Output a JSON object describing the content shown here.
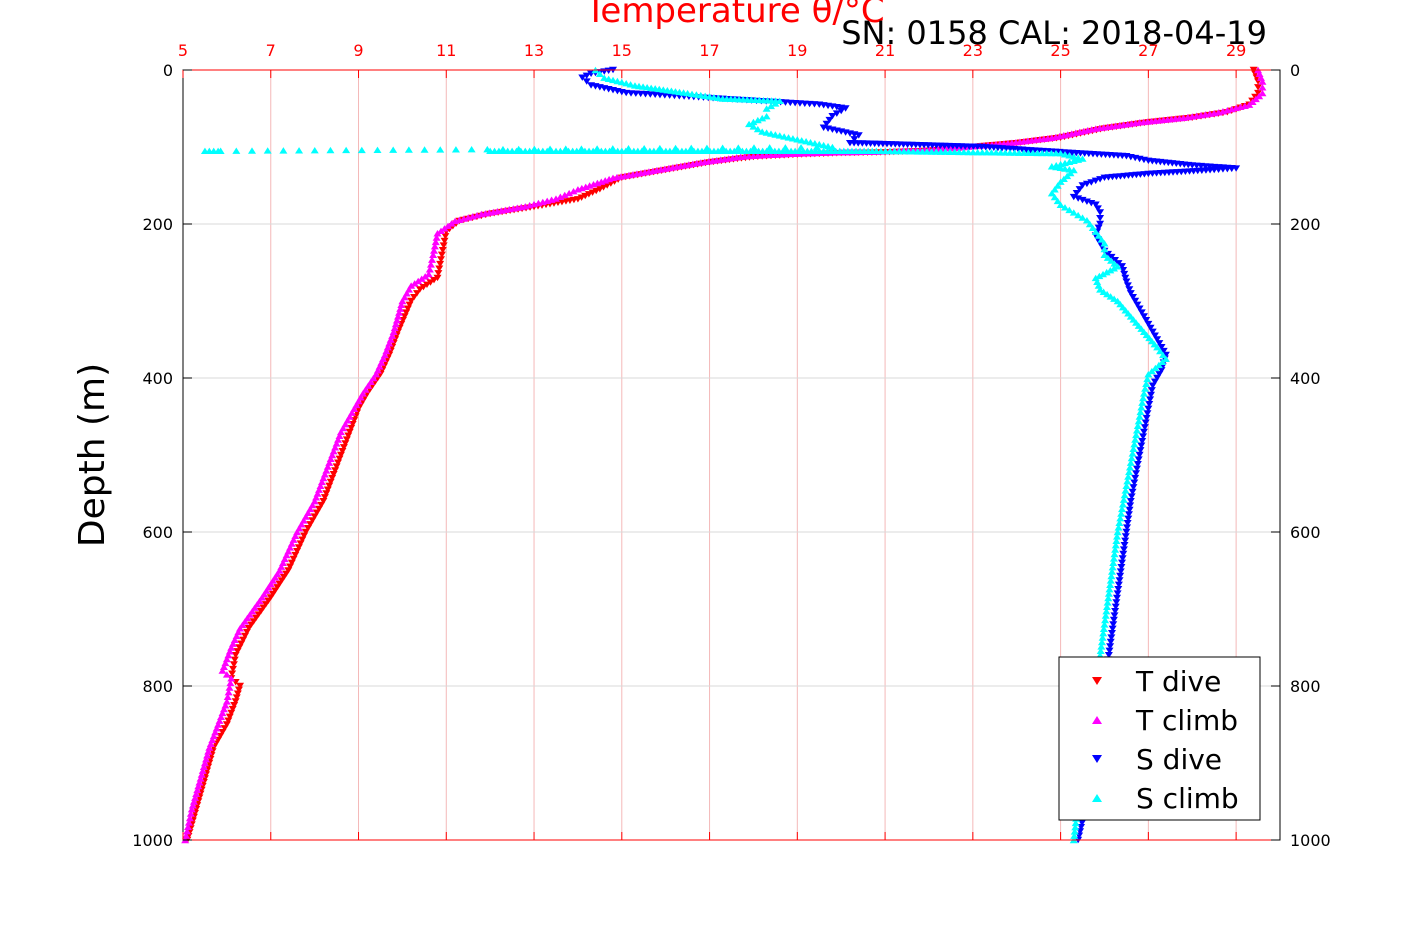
{
  "chart_data": {
    "type": "scatter",
    "title": "Temperature θ/°C",
    "annotation": "SN: 0158  CAL: 2018-04-19",
    "ylabel": "Depth (m)",
    "y_axis": {
      "range": [
        0,
        1000
      ],
      "reversed": true,
      "ticks": [
        0,
        200,
        400,
        600,
        800,
        1000
      ]
    },
    "x_top_axis": {
      "label": "Temperature θ/°C",
      "range": [
        5,
        30
      ],
      "ticks": [
        5,
        7,
        9,
        11,
        13,
        15,
        17,
        19,
        21,
        23,
        25,
        27,
        29
      ]
    },
    "grid": true,
    "legend_position": "bottom-right",
    "colors": {
      "temperature_axis": "#ff0000",
      "grid_temp": "#f4b8b8",
      "grid_gray": "#d9d9d9"
    },
    "series": [
      {
        "name": "T dive",
        "color": "#ff0000",
        "marker": "triangle-down",
        "points": [
          [
            29.4,
            0
          ],
          [
            29.5,
            15
          ],
          [
            29.5,
            30
          ],
          [
            29.3,
            45
          ],
          [
            28.8,
            55
          ],
          [
            28.0,
            62
          ],
          [
            27.0,
            68
          ],
          [
            26.0,
            76
          ],
          [
            25.0,
            88
          ],
          [
            24.0,
            95
          ],
          [
            23.0,
            100
          ],
          [
            22.0,
            105
          ],
          [
            21.0,
            107
          ],
          [
            20.0,
            108
          ],
          [
            19.0,
            110
          ],
          [
            18.0,
            113
          ],
          [
            17.0,
            120
          ],
          [
            16.0,
            130
          ],
          [
            15.0,
            140
          ],
          [
            14.5,
            155
          ],
          [
            14.0,
            168
          ],
          [
            13.0,
            178
          ],
          [
            12.0,
            187
          ],
          [
            11.3,
            196
          ],
          [
            11.0,
            210
          ],
          [
            10.9,
            240
          ],
          [
            10.8,
            270
          ],
          [
            10.4,
            285
          ],
          [
            10.2,
            300
          ],
          [
            9.9,
            340
          ],
          [
            9.7,
            370
          ],
          [
            9.5,
            395
          ],
          [
            9.2,
            420
          ],
          [
            9.0,
            440
          ],
          [
            8.8,
            470
          ],
          [
            8.6,
            500
          ],
          [
            8.4,
            530
          ],
          [
            8.2,
            560
          ],
          [
            7.8,
            600
          ],
          [
            7.4,
            650
          ],
          [
            7.0,
            685
          ],
          [
            6.5,
            725
          ],
          [
            6.2,
            760
          ],
          [
            6.1,
            790
          ],
          [
            6.3,
            800
          ],
          [
            6.2,
            820
          ],
          [
            6.0,
            850
          ],
          [
            5.7,
            880
          ],
          [
            5.5,
            920
          ],
          [
            5.3,
            960
          ],
          [
            5.1,
            1000
          ]
        ]
      },
      {
        "name": "T climb",
        "color": "#ff00ff",
        "marker": "triangle-up",
        "points": [
          [
            29.5,
            0
          ],
          [
            29.6,
            15
          ],
          [
            29.6,
            30
          ],
          [
            29.3,
            45
          ],
          [
            28.6,
            55
          ],
          [
            27.8,
            62
          ],
          [
            26.8,
            68
          ],
          [
            25.8,
            76
          ],
          [
            24.8,
            88
          ],
          [
            23.8,
            95
          ],
          [
            22.8,
            100
          ],
          [
            21.8,
            104
          ],
          [
            20.8,
            106
          ],
          [
            19.8,
            107
          ],
          [
            18.8,
            109
          ],
          [
            17.8,
            112
          ],
          [
            16.8,
            120
          ],
          [
            15.8,
            130
          ],
          [
            14.8,
            140
          ],
          [
            14.0,
            155
          ],
          [
            13.5,
            167
          ],
          [
            12.8,
            177
          ],
          [
            11.8,
            187
          ],
          [
            11.2,
            196
          ],
          [
            10.8,
            212
          ],
          [
            10.7,
            240
          ],
          [
            10.6,
            265
          ],
          [
            10.2,
            280
          ],
          [
            10.0,
            300
          ],
          [
            9.8,
            340
          ],
          [
            9.6,
            370
          ],
          [
            9.4,
            395
          ],
          [
            9.1,
            420
          ],
          [
            8.9,
            440
          ],
          [
            8.6,
            470
          ],
          [
            8.4,
            500
          ],
          [
            8.2,
            530
          ],
          [
            8.0,
            560
          ],
          [
            7.6,
            600
          ],
          [
            7.2,
            650
          ],
          [
            6.8,
            685
          ],
          [
            6.3,
            725
          ],
          [
            6.1,
            750
          ],
          [
            5.9,
            780
          ],
          [
            6.1,
            790
          ],
          [
            6.0,
            820
          ],
          [
            5.8,
            850
          ],
          [
            5.6,
            880
          ],
          [
            5.4,
            920
          ],
          [
            5.2,
            960
          ],
          [
            5.05,
            1000
          ]
        ]
      },
      {
        "name": "S dive",
        "color": "#0000ff",
        "marker": "triangle-down",
        "points": [
          [
            14.8,
            0
          ],
          [
            14.3,
            5
          ],
          [
            14.1,
            10
          ],
          [
            14.3,
            20
          ],
          [
            15.1,
            30
          ],
          [
            19.5,
            45
          ],
          [
            20.1,
            50
          ],
          [
            19.8,
            60
          ],
          [
            19.6,
            75
          ],
          [
            20.4,
            85
          ],
          [
            20.2,
            95
          ],
          [
            23.2,
            100
          ],
          [
            24.5,
            105
          ],
          [
            26.5,
            112
          ],
          [
            27.0,
            118
          ],
          [
            28.0,
            124
          ],
          [
            29.0,
            128
          ],
          [
            28.5,
            130
          ],
          [
            27.0,
            135
          ],
          [
            26.0,
            140
          ],
          [
            25.5,
            150
          ],
          [
            25.3,
            165
          ],
          [
            25.8,
            175
          ],
          [
            25.9,
            185
          ],
          [
            25.9,
            200
          ],
          [
            25.8,
            215
          ],
          [
            26.0,
            235
          ],
          [
            26.4,
            255
          ],
          [
            26.5,
            275
          ],
          [
            26.6,
            290
          ],
          [
            26.8,
            310
          ],
          [
            27.0,
            330
          ],
          [
            27.2,
            350
          ],
          [
            27.4,
            370
          ],
          [
            27.3,
            390
          ],
          [
            27.1,
            410
          ],
          [
            27.0,
            440
          ],
          [
            26.9,
            470
          ],
          [
            26.8,
            500
          ],
          [
            26.7,
            530
          ],
          [
            26.6,
            560
          ],
          [
            26.5,
            600
          ],
          [
            26.4,
            640
          ],
          [
            26.3,
            680
          ],
          [
            26.2,
            720
          ],
          [
            26.1,
            760
          ],
          [
            26.0,
            800
          ],
          [
            25.9,
            850
          ],
          [
            25.8,
            900
          ],
          [
            25.6,
            950
          ],
          [
            25.4,
            1000
          ]
        ]
      },
      {
        "name": "S climb",
        "color": "#00ffff",
        "marker": "triangle-up",
        "points": [
          [
            14.4,
            0
          ],
          [
            14.6,
            10
          ],
          [
            15.3,
            20
          ],
          [
            16.5,
            30
          ],
          [
            17.3,
            37
          ],
          [
            18.6,
            40
          ],
          [
            18.3,
            50
          ],
          [
            18.3,
            60
          ],
          [
            17.9,
            70
          ],
          [
            18.2,
            80
          ],
          [
            19.0,
            90
          ],
          [
            19.8,
            100
          ],
          [
            5.5,
            105
          ],
          [
            5.8,
            105
          ],
          [
            12.0,
            105
          ],
          [
            12.7,
            105
          ],
          [
            13.6,
            105
          ],
          [
            15.0,
            105
          ],
          [
            17.1,
            105
          ],
          [
            20.8,
            105
          ],
          [
            25.0,
            108
          ],
          [
            25.5,
            115
          ],
          [
            24.8,
            125
          ],
          [
            25.3,
            130
          ],
          [
            25.0,
            145
          ],
          [
            24.8,
            160
          ],
          [
            25.0,
            175
          ],
          [
            25.3,
            185
          ],
          [
            25.6,
            195
          ],
          [
            25.8,
            210
          ],
          [
            26.0,
            225
          ],
          [
            26.0,
            240
          ],
          [
            26.3,
            255
          ],
          [
            25.8,
            270
          ],
          [
            25.9,
            285
          ],
          [
            26.3,
            300
          ],
          [
            26.6,
            320
          ],
          [
            26.9,
            340
          ],
          [
            27.2,
            360
          ],
          [
            27.4,
            375
          ],
          [
            27.0,
            395
          ],
          [
            26.9,
            420
          ],
          [
            26.8,
            450
          ],
          [
            26.7,
            480
          ],
          [
            26.6,
            510
          ],
          [
            26.5,
            540
          ],
          [
            26.4,
            570
          ],
          [
            26.3,
            600
          ],
          [
            26.2,
            640
          ],
          [
            26.1,
            680
          ],
          [
            26.0,
            720
          ],
          [
            25.9,
            760
          ],
          [
            25.8,
            800
          ],
          [
            25.7,
            850
          ],
          [
            25.6,
            900
          ],
          [
            25.4,
            950
          ],
          [
            25.3,
            1000
          ]
        ]
      }
    ]
  }
}
